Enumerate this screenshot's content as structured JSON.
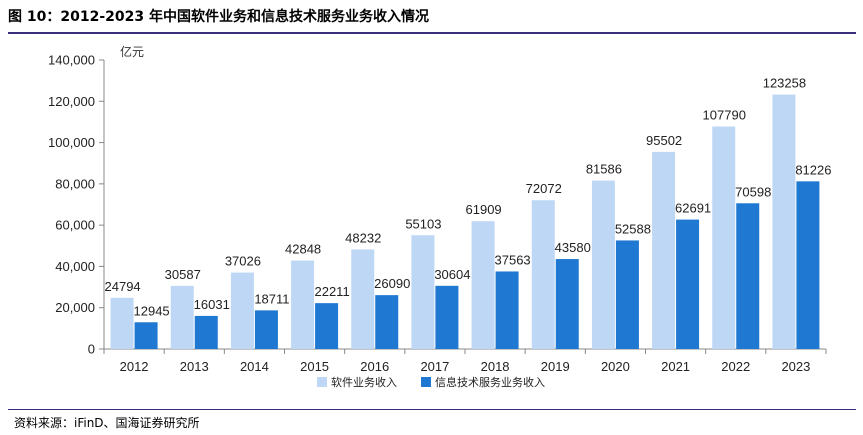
{
  "header": {
    "title": "图 10：2012-2023 年中国软件业务和信息技术服务业务收入情况"
  },
  "footer": {
    "source": "资料来源：iFinD、国海证券研究所"
  },
  "colors": {
    "series1": "#bdd7f5",
    "series2": "#1f78d1",
    "axis": "#888888",
    "rule": "#3a2d7a"
  },
  "chart_data": {
    "type": "bar",
    "title": "2012-2023 年中国软件业务和信息技术服务业务收入情况",
    "unit_label": "亿元",
    "xlabel": "",
    "ylabel": "亿元",
    "ylim": [
      0,
      140000
    ],
    "yticks": [
      0,
      20000,
      40000,
      60000,
      80000,
      100000,
      120000,
      140000
    ],
    "ytick_labels": [
      "0",
      "20,000",
      "40,000",
      "60,000",
      "80,000",
      "100,000",
      "120,000",
      "140,000"
    ],
    "grid": false,
    "legend_position": "bottom-center",
    "categories": [
      "2012",
      "2013",
      "2014",
      "2015",
      "2016",
      "2017",
      "2018",
      "2019",
      "2020",
      "2021",
      "2022",
      "2023"
    ],
    "series": [
      {
        "name": "软件业务收入",
        "color": "#bdd7f5",
        "values": [
          24794,
          30587,
          37026,
          42848,
          48232,
          55103,
          61909,
          72072,
          81586,
          95502,
          107790,
          123258
        ]
      },
      {
        "name": "信息技术服务业务收入",
        "color": "#1f78d1",
        "values": [
          12945,
          16031,
          18711,
          22211,
          26090,
          30604,
          37563,
          43580,
          52588,
          62691,
          70598,
          81226
        ]
      }
    ]
  }
}
